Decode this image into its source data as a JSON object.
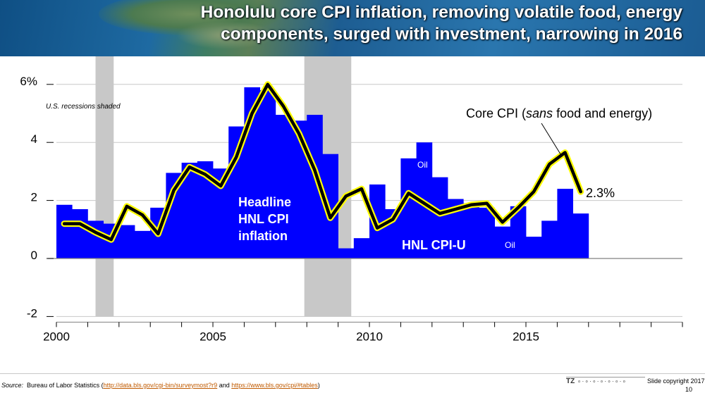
{
  "header": {
    "title_line1": "Honolulu core CPI inflation, removing volatile food, energy",
    "title_line2": "components, surged with investment, narrowing in 2016"
  },
  "chart_data": {
    "type": "bar",
    "recession_note": "U.S. recessions shaded",
    "recessions": [
      [
        2001.25,
        2001.83
      ],
      [
        2007.92,
        2009.42
      ]
    ],
    "xlim": [
      2000,
      2020
    ],
    "ylim": [
      -2,
      6
    ],
    "x_ticks": [
      2000,
      2005,
      2010,
      2015
    ],
    "y_ticks": [
      {
        "value": 6,
        "label": "6%"
      },
      {
        "value": 4,
        "label": "4"
      },
      {
        "value": 2,
        "label": "2"
      },
      {
        "value": 0,
        "label": "0"
      },
      {
        "value": -2,
        "label": "-2"
      }
    ],
    "grid": true,
    "series": [
      {
        "name": "HNL CPI-U",
        "type": "bar",
        "color": "#0000ff",
        "x": [
          2000,
          2000.5,
          2001,
          2001.5,
          2002,
          2002.5,
          2003,
          2003.5,
          2004,
          2004.5,
          2005,
          2005.5,
          2006,
          2006.5,
          2007,
          2007.5,
          2008,
          2008.5,
          2009,
          2009.5,
          2010,
          2010.5,
          2011,
          2011.5,
          2012,
          2012.5,
          2013,
          2013.5,
          2014,
          2014.5,
          2015,
          2015.5,
          2016,
          2016.5
        ],
        "values": [
          1.85,
          1.7,
          1.3,
          1.2,
          1.15,
          0.95,
          1.75,
          2.95,
          3.3,
          3.35,
          3.1,
          4.55,
          5.9,
          5.8,
          4.95,
          4.75,
          4.95,
          3.6,
          0.35,
          0.7,
          2.55,
          1.7,
          3.45,
          4.0,
          2.8,
          2.05,
          1.9,
          1.75,
          1.1,
          1.8,
          0.75,
          1.3,
          2.4,
          1.55
        ]
      },
      {
        "name": "Core CPI (sans food and energy)",
        "type": "line",
        "color": "#000000",
        "highlight": "#ffff00",
        "x": [
          2000.25,
          2000.75,
          2001.25,
          2001.75,
          2002.25,
          2002.75,
          2003.25,
          2003.75,
          2004.25,
          2004.75,
          2005.25,
          2005.75,
          2006.25,
          2006.75,
          2007.25,
          2007.75,
          2008.25,
          2008.75,
          2009.25,
          2009.75,
          2010.25,
          2010.75,
          2011.25,
          2011.75,
          2012.25,
          2012.75,
          2013.25,
          2013.75,
          2014.25,
          2014.75,
          2015.25,
          2015.75,
          2016.25,
          2016.75
        ],
        "values": [
          1.2,
          1.2,
          0.9,
          0.65,
          1.8,
          1.5,
          0.85,
          2.35,
          3.15,
          2.9,
          2.5,
          3.5,
          5.0,
          6.0,
          5.25,
          4.3,
          3.05,
          1.4,
          2.15,
          2.4,
          1.05,
          1.35,
          2.25,
          1.9,
          1.55,
          1.7,
          1.85,
          1.9,
          1.25,
          1.75,
          2.3,
          3.25,
          3.65,
          2.3
        ]
      }
    ],
    "annotations": {
      "headline": [
        "Headline",
        "HNL CPI",
        "inflation"
      ],
      "series_label": "HNL CPI-U",
      "oil_1": "Oil",
      "oil_2": "Oil",
      "core_prefix": "Core CPI (",
      "core_italic": "sans",
      "core_suffix": " food and energy)",
      "end_value": "2.3%"
    }
  },
  "footer": {
    "source_prefix": "Source:",
    "source_text": "Bureau of Labor Statistics (",
    "link1": "http://data.bls.gov/cgi-bin/surveymost?r9",
    "and_text": " and ",
    "link2": "https://www.bls.gov/cpi/#tables",
    "close_text": ")",
    "logo_text": "TZ",
    "copyright": "Slide copyright 2017",
    "page_number": "10"
  }
}
